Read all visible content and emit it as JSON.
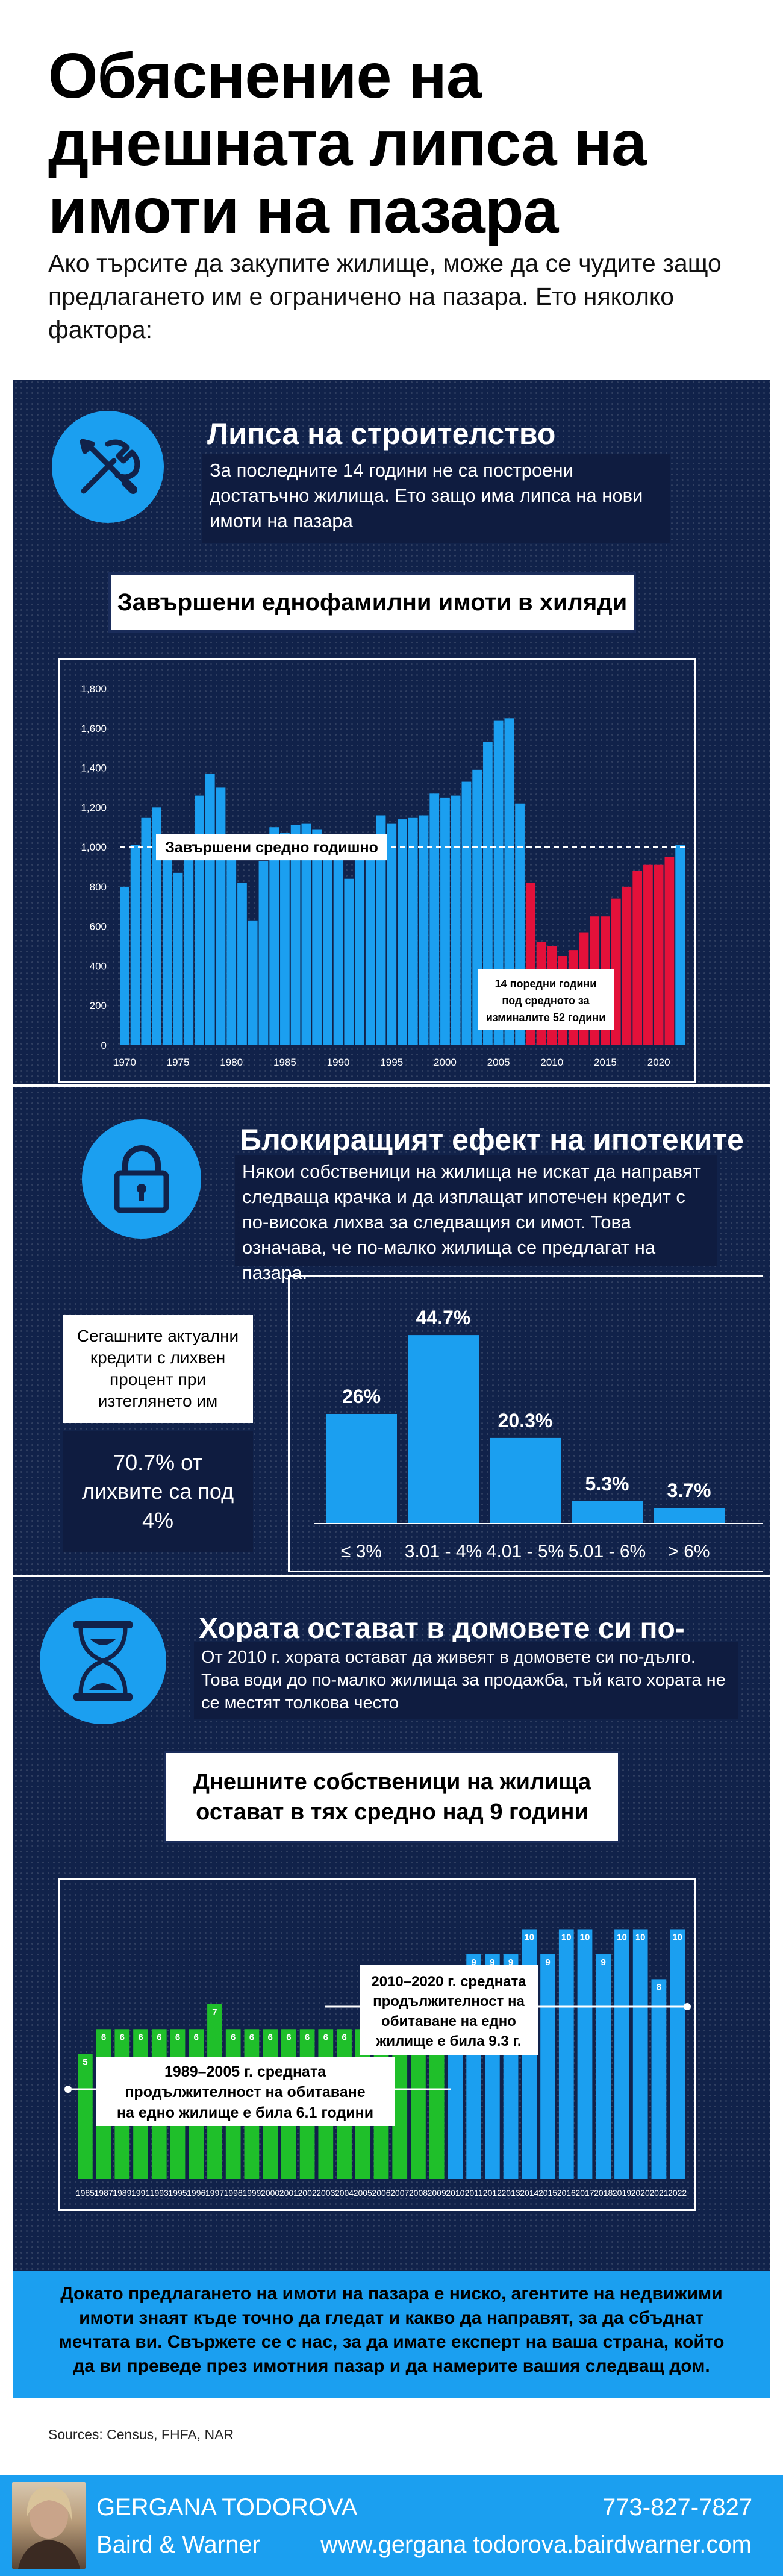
{
  "header": {
    "title": "Обяснение на днешната липса на имоти на пазара",
    "subtitle": "Ако търсите да закупите жилище, може да се чудите защо предлагането им е ограничено на пазара. Ето няколко фактора:"
  },
  "section1": {
    "icon": "tools-icon",
    "title": "Липса на строителство",
    "description": "За последните 14 години не са построени достатъчно жилища. Ето защо има липса на нови имоти на пазара",
    "chart_title": "Завършени еднофамилни имоти в хиляди",
    "average_label": "Завършени средно годишно",
    "callout": "14 поредни години под средното за изминалите 52 години"
  },
  "section2": {
    "icon": "padlock-icon",
    "title": "Блокиращият ефект на ипотеките",
    "description": "Някои собственици на жилища не искат да направят следваща крачка и да изплащат ипотечен кредит с по-висока лихва за следващия си имот. Това означава, че по-малко жилища се предлагат на пазара.",
    "side_box_title": "Сегашните актуални кредити с лихвен процент при изтеглянето им",
    "side_box_stat": "70.7% от лихвите са под 4%"
  },
  "section3": {
    "icon": "hourglass-icon",
    "title": "Хората остават в домовете си по-дълго",
    "description": "От 2010 г. хората остават да живеят в домовете си по-дълго. Това води до по-малко жилища за продажба, тъй като хората не се местят толкова често",
    "chart_title": "Днешните собственици на жилища остават в тях средно над 9 години",
    "callout_left": "1989–2005 г. средната продължителност на обитаване на едно жилище е била 6.1 години",
    "callout_right": "2010–2020 г. средната продължителност на обитаване на едно жилище е била 9.3 г."
  },
  "cta": "Докато предлагането на имоти на пазара е ниско, агентите на недвижими имоти знаят къде точно да гледат и какво да направят, за да сбъднат мечтата ви. Свържете се с нас, за да имате експерт на ваша страна, който да ви преведе през имотния пазар и да намерите вашия следващ дом.",
  "sources": "Sources: Census, FHFA, NAR",
  "footer": {
    "name": "GERGANA TODOROVA",
    "company": "Baird & Warner",
    "phone": "773-827-7827",
    "website": "www.gergana todorova.bairdwarner.com"
  },
  "colors": {
    "navy": "#11224a",
    "blue": "#1b9ff0",
    "red": "#e3113a",
    "green": "#1fbf2a"
  },
  "chart_data": [
    {
      "type": "bar",
      "title": "Завършени еднофамилни имоти в хиляди",
      "x": [
        1970,
        1971,
        1972,
        1973,
        1974,
        1975,
        1976,
        1977,
        1978,
        1979,
        1980,
        1981,
        1982,
        1983,
        1984,
        1985,
        1986,
        1987,
        1988,
        1989,
        1990,
        1991,
        1992,
        1993,
        1994,
        1995,
        1996,
        1997,
        1998,
        1999,
        2000,
        2001,
        2002,
        2003,
        2004,
        2005,
        2006,
        2007,
        2008,
        2009,
        2010,
        2011,
        2012,
        2013,
        2014,
        2015,
        2016,
        2017,
        2018,
        2019,
        2020,
        2021,
        2022
      ],
      "values": [
        800,
        1010,
        1150,
        1200,
        960,
        870,
        1030,
        1260,
        1370,
        1300,
        960,
        820,
        630,
        930,
        1100,
        1070,
        1110,
        1120,
        1090,
        1020,
        960,
        840,
        960,
        1040,
        1160,
        1120,
        1140,
        1150,
        1160,
        1270,
        1250,
        1260,
        1330,
        1390,
        1530,
        1640,
        1650,
        1220,
        820,
        520,
        500,
        450,
        480,
        570,
        650,
        650,
        740,
        800,
        880,
        910,
        910,
        950,
        1010
      ],
      "highlight_from": 2008,
      "average": 1000,
      "ylim": [
        0,
        1800
      ],
      "yticks": [
        0,
        200,
        400,
        600,
        800,
        1000,
        1200,
        1400,
        1600,
        1800
      ],
      "ytick_labels": [
        "0",
        "200",
        "400",
        "600",
        "800",
        "1,000",
        "1,200",
        "1,400",
        "1,600",
        "1,800"
      ],
      "xtick_labels": [
        "1970",
        "1975",
        "1980",
        "1985",
        "1990",
        "1995",
        "2000",
        "2005",
        "2010",
        "2015",
        "2020"
      ]
    },
    {
      "type": "bar",
      "categories": [
        "≤ 3%",
        "3.01 - 4%",
        "4.01 - 5%",
        "5.01 - 6%",
        "> 6%"
      ],
      "values": [
        26,
        44.7,
        20.3,
        5.3,
        3.7
      ],
      "value_labels": [
        "26%",
        "44.7%",
        "20.3%",
        "5.3%",
        "3.7%"
      ]
    },
    {
      "type": "bar",
      "categories": [
        "1985",
        "1987",
        "1989",
        "1991",
        "1993",
        "1995",
        "1996",
        "1997",
        "1998",
        "1999",
        "2000",
        "2001",
        "2002",
        "2003",
        "2004",
        "2005",
        "2006",
        "2007",
        "2008",
        "2009",
        "2010",
        "2011",
        "2012",
        "2013",
        "2014",
        "2015",
        "2016",
        "2017",
        "2018",
        "2019",
        "2020",
        "2021",
        "2022"
      ],
      "values": [
        5,
        6,
        6,
        6,
        6,
        6,
        6,
        7,
        6,
        6,
        6,
        6,
        6,
        6,
        6,
        6,
        6,
        6,
        6,
        7,
        8,
        9,
        9,
        9,
        10,
        9,
        10,
        10,
        9,
        10,
        10,
        8,
        10
      ],
      "green_through": "2009",
      "ylim": [
        0,
        11
      ]
    }
  ]
}
